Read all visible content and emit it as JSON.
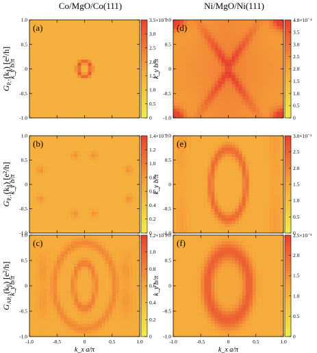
{
  "column_titles": [
    "Co/MgO/Co(111)",
    "Ni/MgO/Ni(111)"
  ],
  "row_labels": [
    {
      "main": "G",
      "sub": "P,↑",
      "rest": "(k",
      "sub2": "∥",
      "tail": ") [e²/h]"
    },
    {
      "main": "G",
      "sub": "P,↓",
      "rest": "(k",
      "sub2": "∥",
      "tail": ") [e²/h]"
    },
    {
      "main": "G",
      "sub": "AP,↑",
      "rest": "(k",
      "sub2": "∥",
      "tail": ") [e²/h]"
    }
  ],
  "y_axis_label": "k_y b/π",
  "x_axis_label": "k_x a/π",
  "colors": {
    "colormap_low": "#f0ec4a",
    "colormap_mid": "#f6a53a",
    "colormap_high": "#e8432e",
    "axis": "#000000"
  },
  "chart_data": [
    {
      "type": "heatmap",
      "panel": "(a)",
      "row": 0,
      "col": 0,
      "pattern": "small_ring",
      "scale_label": "3.5×10⁻¹",
      "colorbar_ticks": [
        "0",
        "0.5",
        "1.0",
        "1.5",
        "2.0",
        "2.5",
        "3.0"
      ],
      "colorbar_tick_values": [
        0,
        0.5,
        1.0,
        1.5,
        2.0,
        2.5,
        3.0
      ],
      "zlim": [
        0,
        3.5
      ],
      "xlim": [
        -1,
        1
      ],
      "ylim": [
        -1,
        1
      ],
      "yticks": [
        "-1.0",
        "-0.5",
        "0",
        "0.5",
        "1.0"
      ]
    },
    {
      "type": "heatmap",
      "panel": "(d)",
      "row": 0,
      "col": 1,
      "pattern": "x_cross",
      "scale_label": "4.0×10⁻⁴",
      "colorbar_ticks": [
        "0",
        "0.5",
        "1.0",
        "1.5",
        "2.0",
        "2.5",
        "3.0",
        "3.5"
      ],
      "colorbar_tick_values": [
        0,
        0.5,
        1.0,
        1.5,
        2.0,
        2.5,
        3.0,
        3.5
      ],
      "zlim": [
        0,
        4.0
      ],
      "xlim": [
        -1,
        1
      ],
      "ylim": [
        -1,
        1
      ],
      "yticks": [
        "-1.0",
        "-0.5",
        "0",
        "0.5",
        "1.0"
      ]
    },
    {
      "type": "heatmap",
      "panel": "(b)",
      "row": 1,
      "col": 0,
      "pattern": "spots",
      "scale_label": "1.4×10⁻¹",
      "colorbar_ticks": [
        "0",
        "0.2",
        "0.4",
        "0.6",
        "0.8",
        "1.0",
        "1.2"
      ],
      "colorbar_tick_values": [
        0,
        0.2,
        0.4,
        0.6,
        0.8,
        1.0,
        1.2
      ],
      "zlim": [
        0,
        1.4
      ],
      "xlim": [
        -1,
        1
      ],
      "ylim": [
        -1,
        1
      ],
      "yticks": [
        "-1.0",
        "-0.5",
        "0",
        "0.5",
        "1.0"
      ]
    },
    {
      "type": "heatmap",
      "panel": "(e)",
      "row": 1,
      "col": 1,
      "pattern": "ellipse",
      "scale_label": "3.0×10⁻²",
      "colorbar_ticks": [
        "0",
        "0.5",
        "1.0",
        "1.5",
        "2.0",
        "2.5"
      ],
      "colorbar_tick_values": [
        0,
        0.5,
        1.0,
        1.5,
        2.0,
        2.5
      ],
      "zlim": [
        0,
        3.0
      ],
      "xlim": [
        -1,
        1
      ],
      "ylim": [
        -1,
        1
      ],
      "yticks": [
        "-1.0",
        "-0.5",
        "0",
        "0.5",
        "1.0"
      ]
    },
    {
      "type": "heatmap",
      "panel": "(c)",
      "row": 2,
      "col": 0,
      "pattern": "multi_ring",
      "scale_label": "1.2×10⁻³",
      "colorbar_ticks": [
        "0",
        "0.2",
        "0.4",
        "0.6",
        "0.8",
        "1.0"
      ],
      "colorbar_tick_values": [
        0,
        0.2,
        0.4,
        0.6,
        0.8,
        1.0
      ],
      "zlim": [
        0,
        1.2
      ],
      "xlim": [
        -1,
        1
      ],
      "ylim": [
        -1,
        1
      ],
      "xticks": [
        "-1.0",
        "-0.5",
        "0",
        "0.5",
        "1.0"
      ],
      "yticks": [
        "-1.0",
        "-0.5",
        "0",
        "0.5",
        "1.0"
      ]
    },
    {
      "type": "heatmap",
      "panel": "(f)",
      "row": 2,
      "col": 1,
      "pattern": "thick_ellipse",
      "scale_label": "2.5×10⁻³",
      "colorbar_ticks": [
        "0",
        "0.5",
        "1.0",
        "1.5",
        "2.0"
      ],
      "colorbar_tick_values": [
        0,
        0.5,
        1.0,
        1.5,
        2.0
      ],
      "zlim": [
        0,
        2.5
      ],
      "xlim": [
        -1,
        1
      ],
      "ylim": [
        -1,
        1
      ],
      "xticks": [
        "-1.0",
        "-0.5",
        "0",
        "0.5",
        "1.0"
      ],
      "yticks": [
        "-1.0",
        "-0.5",
        "0",
        "0.5",
        "1.0"
      ]
    }
  ]
}
